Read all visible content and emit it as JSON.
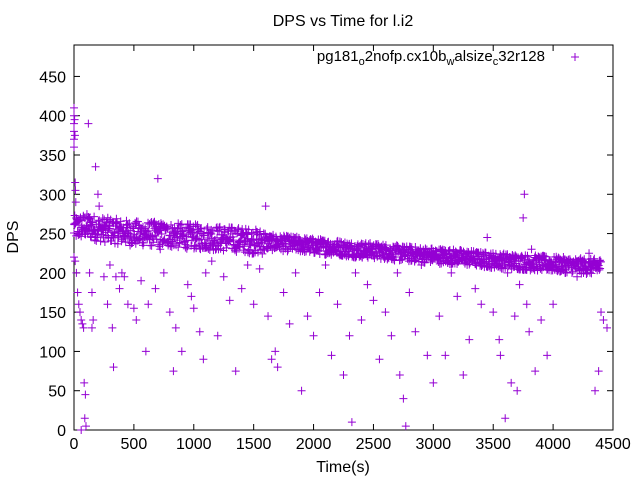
{
  "chart_data": {
    "type": "scatter",
    "title": "DPS vs Time for l.i2",
    "xlabel": "Time(s)",
    "ylabel": "DPS",
    "xlim": [
      0,
      4500
    ],
    "ylim": [
      0,
      490
    ],
    "xticks": [
      0,
      500,
      1000,
      1500,
      2000,
      2500,
      3000,
      3500,
      4000,
      4500
    ],
    "yticks": [
      0,
      50,
      100,
      150,
      200,
      250,
      300,
      350,
      400,
      450
    ],
    "grid": false,
    "legend_position": "top-right",
    "marker": "+",
    "color": "#9400d3",
    "series": [
      {
        "name_parts": [
          "pg181",
          "o",
          "2nofp.cx10b",
          "w",
          "alsize",
          "c",
          "32r128"
        ],
        "name": "pg181_o2nofp.cx10b_walsize_c32r128",
        "band": [
          [
            0,
            257
          ],
          [
            100,
            260
          ],
          [
            200,
            256
          ],
          [
            300,
            254
          ],
          [
            400,
            252
          ],
          [
            500,
            250
          ],
          [
            600,
            250
          ],
          [
            700,
            249
          ],
          [
            800,
            248
          ],
          [
            900,
            247
          ],
          [
            1000,
            246
          ],
          [
            1100,
            245
          ],
          [
            1200,
            244
          ],
          [
            1300,
            243
          ],
          [
            1400,
            242
          ],
          [
            1500,
            240
          ],
          [
            1600,
            239
          ],
          [
            1700,
            238
          ],
          [
            1800,
            237
          ],
          [
            1900,
            236
          ],
          [
            2000,
            234
          ],
          [
            2100,
            233
          ],
          [
            2200,
            232
          ],
          [
            2300,
            230
          ],
          [
            2400,
            229
          ],
          [
            2500,
            228
          ],
          [
            2600,
            227
          ],
          [
            2700,
            225
          ],
          [
            2800,
            224
          ],
          [
            2900,
            223
          ],
          [
            3000,
            222
          ],
          [
            3100,
            221
          ],
          [
            3200,
            220
          ],
          [
            3300,
            219
          ],
          [
            3400,
            217
          ],
          [
            3500,
            216
          ],
          [
            3600,
            215
          ],
          [
            3700,
            214
          ],
          [
            3800,
            213
          ],
          [
            3900,
            212
          ],
          [
            4000,
            211
          ],
          [
            4100,
            210
          ],
          [
            4200,
            209
          ],
          [
            4300,
            208
          ],
          [
            4400,
            208
          ]
        ],
        "points": [
          [
            0,
            410
          ],
          [
            0,
            400
          ],
          [
            0,
            390
          ],
          [
            0,
            380
          ],
          [
            0,
            370
          ],
          [
            0,
            360
          ],
          [
            5,
            395
          ],
          [
            8,
            375
          ],
          [
            10,
            315
          ],
          [
            12,
            305
          ],
          [
            15,
            290
          ],
          [
            0,
            220
          ],
          [
            10,
            215
          ],
          [
            20,
            200
          ],
          [
            30,
            175
          ],
          [
            40,
            160
          ],
          [
            50,
            150
          ],
          [
            60,
            140
          ],
          [
            70,
            135
          ],
          [
            80,
            130
          ],
          [
            85,
            60
          ],
          [
            95,
            45
          ],
          [
            90,
            15
          ],
          [
            100,
            5
          ],
          [
            60,
            0
          ],
          [
            120,
            390
          ],
          [
            130,
            200
          ],
          [
            150,
            175
          ],
          [
            150,
            130
          ],
          [
            160,
            140
          ],
          [
            180,
            335
          ],
          [
            200,
            300
          ],
          [
            210,
            285
          ],
          [
            250,
            195
          ],
          [
            280,
            160
          ],
          [
            300,
            210
          ],
          [
            320,
            130
          ],
          [
            330,
            80
          ],
          [
            350,
            195
          ],
          [
            380,
            180
          ],
          [
            400,
            200
          ],
          [
            420,
            195
          ],
          [
            450,
            160
          ],
          [
            500,
            155
          ],
          [
            520,
            140
          ],
          [
            560,
            190
          ],
          [
            600,
            100
          ],
          [
            620,
            160
          ],
          [
            680,
            180
          ],
          [
            700,
            320
          ],
          [
            720,
            230
          ],
          [
            750,
            200
          ],
          [
            800,
            150
          ],
          [
            830,
            75
          ],
          [
            850,
            130
          ],
          [
            900,
            100
          ],
          [
            950,
            185
          ],
          [
            980,
            170
          ],
          [
            1000,
            155
          ],
          [
            1050,
            125
          ],
          [
            1080,
            90
          ],
          [
            1100,
            200
          ],
          [
            1150,
            215
          ],
          [
            1200,
            120
          ],
          [
            1250,
            195
          ],
          [
            1300,
            165
          ],
          [
            1350,
            75
          ],
          [
            1400,
            180
          ],
          [
            1450,
            210
          ],
          [
            1500,
            160
          ],
          [
            1550,
            205
          ],
          [
            1600,
            285
          ],
          [
            1620,
            145
          ],
          [
            1650,
            90
          ],
          [
            1680,
            100
          ],
          [
            1700,
            80
          ],
          [
            1750,
            175
          ],
          [
            1800,
            135
          ],
          [
            1850,
            200
          ],
          [
            1900,
            50
          ],
          [
            1950,
            145
          ],
          [
            2000,
            120
          ],
          [
            2050,
            175
          ],
          [
            2100,
            210
          ],
          [
            2150,
            95
          ],
          [
            2200,
            160
          ],
          [
            2250,
            70
          ],
          [
            2300,
            120
          ],
          [
            2320,
            10
          ],
          [
            2350,
            200
          ],
          [
            2400,
            140
          ],
          [
            2450,
            185
          ],
          [
            2500,
            165
          ],
          [
            2550,
            90
          ],
          [
            2600,
            150
          ],
          [
            2650,
            120
          ],
          [
            2700,
            200
          ],
          [
            2720,
            70
          ],
          [
            2750,
            40
          ],
          [
            2770,
            5
          ],
          [
            2800,
            175
          ],
          [
            2850,
            125
          ],
          [
            2900,
            210
          ],
          [
            2950,
            95
          ],
          [
            3000,
            60
          ],
          [
            3050,
            145
          ],
          [
            3100,
            95
          ],
          [
            3150,
            200
          ],
          [
            3200,
            170
          ],
          [
            3250,
            70
          ],
          [
            3300,
            115
          ],
          [
            3350,
            180
          ],
          [
            3400,
            160
          ],
          [
            3450,
            245
          ],
          [
            3500,
            150
          ],
          [
            3550,
            115
          ],
          [
            3560,
            95
          ],
          [
            3600,
            15
          ],
          [
            3620,
            200
          ],
          [
            3650,
            60
          ],
          [
            3680,
            145
          ],
          [
            3700,
            50
          ],
          [
            3720,
            185
          ],
          [
            3750,
            270
          ],
          [
            3760,
            300
          ],
          [
            3780,
            160
          ],
          [
            3800,
            125
          ],
          [
            3820,
            230
          ],
          [
            3850,
            75
          ],
          [
            3900,
            140
          ],
          [
            3950,
            95
          ],
          [
            4000,
            160
          ],
          [
            4050,
            215
          ],
          [
            4100,
            200
          ],
          [
            4200,
            195
          ],
          [
            4300,
            225
          ],
          [
            4350,
            50
          ],
          [
            4380,
            75
          ],
          [
            4400,
            150
          ],
          [
            4420,
            140
          ],
          [
            4450,
            130
          ]
        ]
      }
    ]
  }
}
